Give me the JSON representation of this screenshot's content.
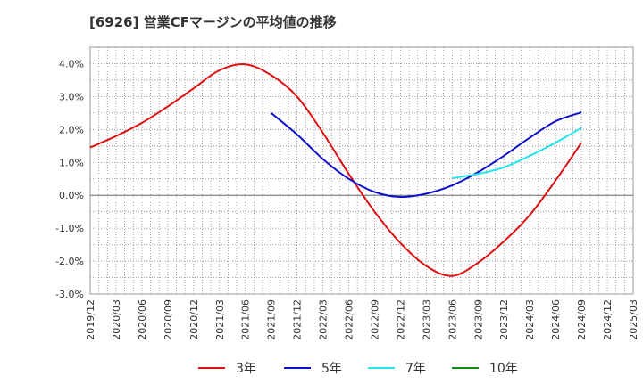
{
  "chart_data": {
    "type": "line",
    "title": "[6926]  営業CFマージンの平均値の推移",
    "xlabel": "",
    "ylabel": "",
    "x_ticks": [
      "2019/12",
      "2020/03",
      "2020/06",
      "2020/09",
      "2020/12",
      "2021/03",
      "2021/06",
      "2021/09",
      "2021/12",
      "2022/03",
      "2022/06",
      "2022/09",
      "2022/12",
      "2023/03",
      "2023/06",
      "2023/09",
      "2023/12",
      "2024/03",
      "2024/06",
      "2024/09",
      "2024/12",
      "2025/03"
    ],
    "y_ticks": [
      "4.0%",
      "3.0%",
      "2.0%",
      "1.0%",
      "0.0%",
      "-1.0%",
      "-2.0%",
      "-3.0%"
    ],
    "ylim": [
      -3.0,
      4.5
    ],
    "grid": true,
    "legend_position": "bottom",
    "series": [
      {
        "name": "3年",
        "color": "#dd1111",
        "x": [
          "2019/12",
          "2020/03",
          "2020/06",
          "2020/09",
          "2020/12",
          "2021/03",
          "2021/06",
          "2021/09",
          "2021/12",
          "2022/03",
          "2022/06",
          "2022/09",
          "2022/12",
          "2023/03",
          "2023/06",
          "2023/09",
          "2023/12",
          "2024/03",
          "2024/06",
          "2024/09"
        ],
        "values": [
          1.45,
          1.8,
          2.2,
          2.7,
          3.25,
          3.8,
          3.98,
          3.65,
          3.0,
          1.9,
          0.65,
          -0.5,
          -1.45,
          -2.15,
          -2.45,
          -2.05,
          -1.4,
          -0.6,
          0.45,
          1.6
        ]
      },
      {
        "name": "5年",
        "color": "#1111cc",
        "x": [
          "2021/09",
          "2021/12",
          "2022/03",
          "2022/06",
          "2022/09",
          "2022/12",
          "2023/03",
          "2023/06",
          "2023/09",
          "2023/12",
          "2024/03",
          "2024/06",
          "2024/09"
        ],
        "values": [
          2.5,
          1.85,
          1.1,
          0.5,
          0.1,
          -0.05,
          0.05,
          0.3,
          0.7,
          1.2,
          1.75,
          2.25,
          2.52
        ]
      },
      {
        "name": "7年",
        "color": "#22e5ee",
        "x": [
          "2023/06",
          "2023/09",
          "2023/12",
          "2024/03",
          "2024/06",
          "2024/09"
        ],
        "values": [
          0.52,
          0.65,
          0.85,
          1.2,
          1.6,
          2.05
        ]
      },
      {
        "name": "10年",
        "color": "#118811",
        "x": [],
        "values": []
      }
    ]
  }
}
